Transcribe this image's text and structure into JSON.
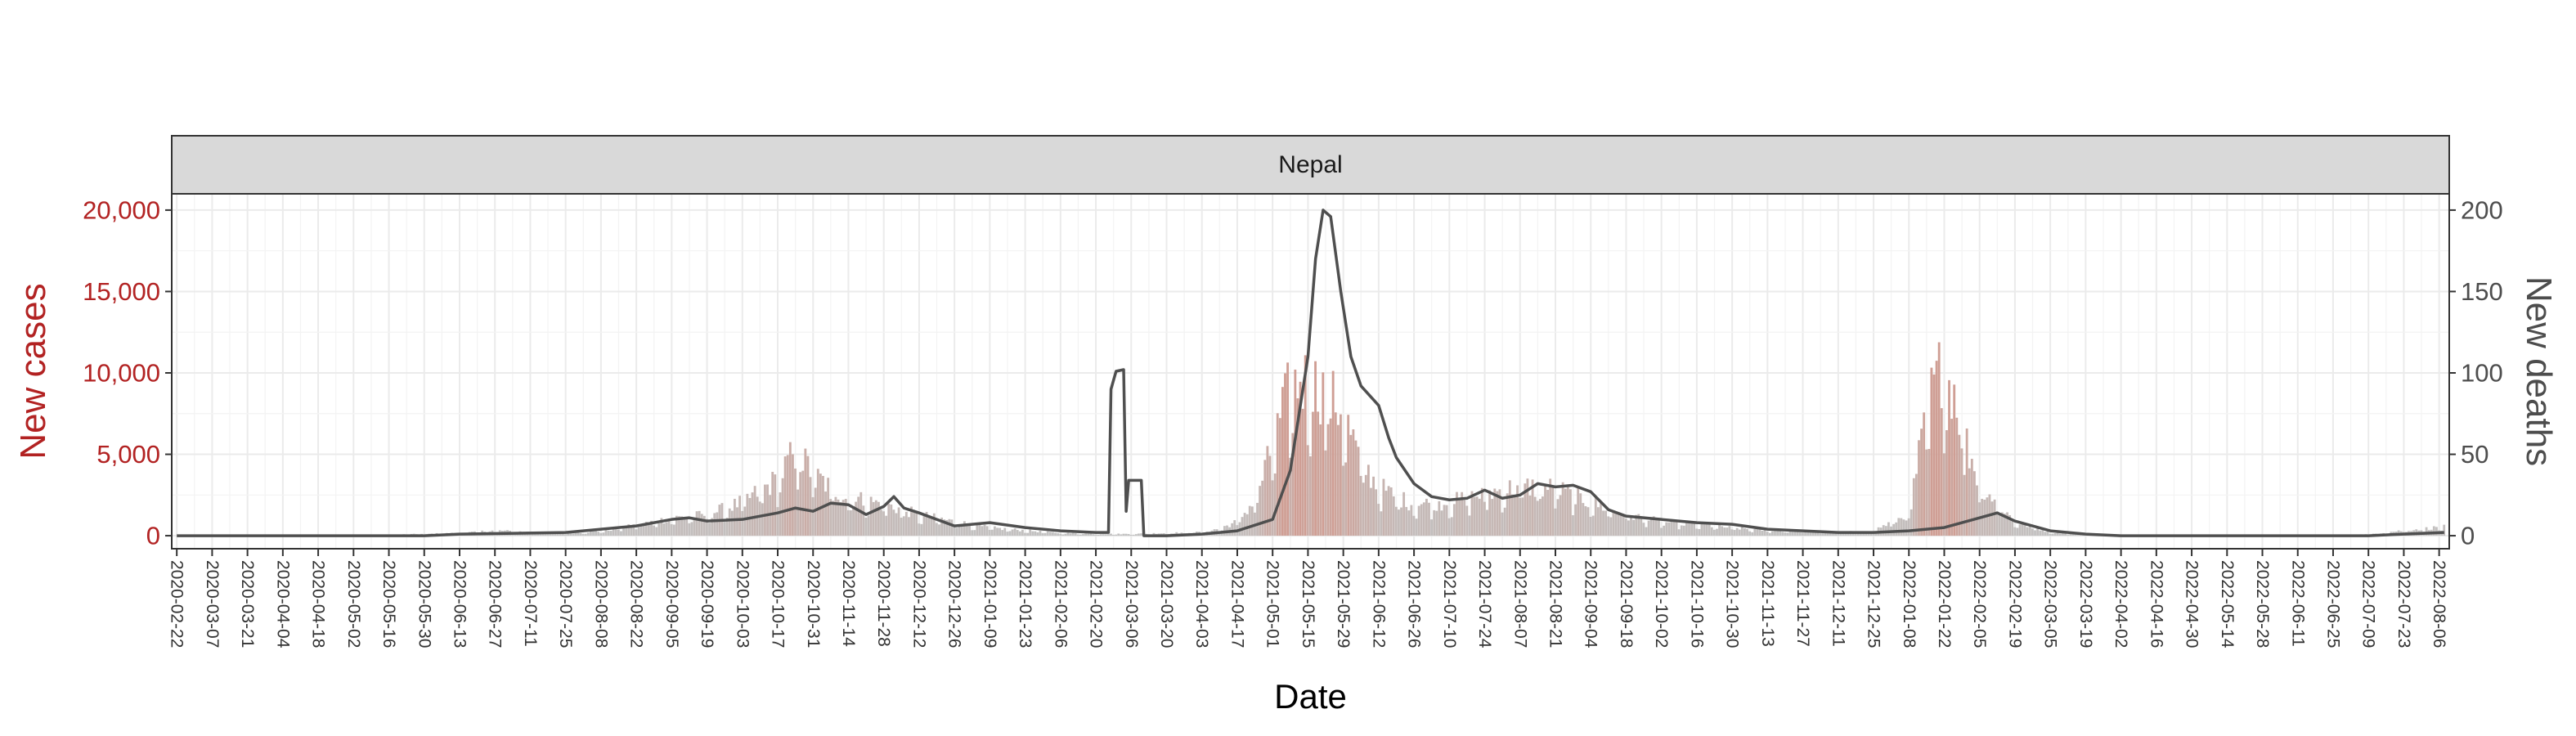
{
  "chart_data": {
    "type": "bar+line",
    "panel_label": "Nepal",
    "xlabel": "Date",
    "ylabel_left": "New cases",
    "ylabel_right": "New deaths",
    "colors": {
      "cases_axis": "#b22222",
      "deaths_axis": "#4d4d4d",
      "bars_low": "#c2c2c2",
      "bars_high": "#cf9e94",
      "deaths_line": "#4f4f4f",
      "strip_fill": "#d9d9d9",
      "grid": "#ebebeb"
    },
    "grid": true,
    "x_range": [
      "2020-02-20",
      "2022-08-10"
    ],
    "y_left_range": [
      -800,
      21000
    ],
    "y_right_range": [
      -8,
      210
    ],
    "y_left_ticks": [
      0,
      5000,
      10000,
      15000,
      20000
    ],
    "y_left_tick_labels": [
      "0",
      "5,000",
      "10,000",
      "15,000",
      "20,000"
    ],
    "y_right_ticks": [
      0,
      50,
      100,
      150,
      200
    ],
    "y_right_tick_labels": [
      "0",
      "50",
      "100",
      "150",
      "200"
    ],
    "x_tick_labels": [
      "2020-02-22",
      "2020-03-07",
      "2020-03-21",
      "2020-04-04",
      "2020-04-18",
      "2020-05-02",
      "2020-05-16",
      "2020-05-30",
      "2020-06-13",
      "2020-06-27",
      "2020-07-11",
      "2020-07-25",
      "2020-08-08",
      "2020-08-22",
      "2020-09-05",
      "2020-09-19",
      "2020-10-03",
      "2020-10-17",
      "2020-10-31",
      "2020-11-14",
      "2020-11-28",
      "2020-12-12",
      "2020-12-26",
      "2021-01-09",
      "2021-01-23",
      "2021-02-06",
      "2021-02-20",
      "2021-03-06",
      "2021-03-20",
      "2021-04-03",
      "2021-04-17",
      "2021-05-01",
      "2021-05-15",
      "2021-05-29",
      "2021-06-12",
      "2021-06-26",
      "2021-07-10",
      "2021-07-24",
      "2021-08-07",
      "2021-08-21",
      "2021-09-04",
      "2021-09-18",
      "2021-10-02",
      "2021-10-16",
      "2021-10-30",
      "2021-11-13",
      "2021-11-27",
      "2021-12-11",
      "2021-12-25",
      "2022-01-08",
      "2022-01-22",
      "2022-02-05",
      "2022-02-19",
      "2022-03-05",
      "2022-03-19",
      "2022-04-02",
      "2022-04-16",
      "2022-04-30",
      "2022-05-14",
      "2022-05-28",
      "2022-06-11",
      "2022-06-25",
      "2022-07-09",
      "2022-07-23",
      "2022-08-06"
    ],
    "new_cases_points": [
      [
        "2020-02-22",
        0
      ],
      [
        "2020-05-15",
        50
      ],
      [
        "2020-06-13",
        150
      ],
      [
        "2020-06-27",
        300
      ],
      [
        "2020-07-11",
        200
      ],
      [
        "2020-07-25",
        150
      ],
      [
        "2020-08-08",
        250
      ],
      [
        "2020-08-22",
        600
      ],
      [
        "2020-09-05",
        1000
      ],
      [
        "2020-09-19",
        1200
      ],
      [
        "2020-10-03",
        1900
      ],
      [
        "2020-10-17",
        3200
      ],
      [
        "2020-10-24",
        4800
      ],
      [
        "2020-10-31",
        3600
      ],
      [
        "2020-11-07",
        2700
      ],
      [
        "2020-11-14",
        2200
      ],
      [
        "2020-11-28",
        1800
      ],
      [
        "2020-12-12",
        1200
      ],
      [
        "2020-12-26",
        800
      ],
      [
        "2021-01-09",
        450
      ],
      [
        "2021-01-23",
        300
      ],
      [
        "2021-02-06",
        150
      ],
      [
        "2021-02-20",
        100
      ],
      [
        "2021-03-06",
        100
      ],
      [
        "2021-03-20",
        150
      ],
      [
        "2021-04-03",
        200
      ],
      [
        "2021-04-10",
        400
      ],
      [
        "2021-04-17",
        800
      ],
      [
        "2021-04-24",
        2000
      ],
      [
        "2021-05-01",
        5000
      ],
      [
        "2021-05-07",
        8000
      ],
      [
        "2021-05-12",
        8900
      ],
      [
        "2021-05-15",
        8700
      ],
      [
        "2021-05-20",
        8400
      ],
      [
        "2021-05-29",
        7000
      ],
      [
        "2021-06-05",
        4200
      ],
      [
        "2021-06-12",
        2800
      ],
      [
        "2021-06-19",
        2200
      ],
      [
        "2021-06-26",
        1800
      ],
      [
        "2021-07-10",
        1900
      ],
      [
        "2021-07-24",
        2400
      ],
      [
        "2021-08-07",
        2800
      ],
      [
        "2021-08-21",
        2700
      ],
      [
        "2021-09-04",
        1900
      ],
      [
        "2021-09-18",
        1200
      ],
      [
        "2021-10-02",
        800
      ],
      [
        "2021-10-16",
        650
      ],
      [
        "2021-10-30",
        450
      ],
      [
        "2021-11-13",
        300
      ],
      [
        "2021-11-27",
        250
      ],
      [
        "2021-12-11",
        200
      ],
      [
        "2021-12-25",
        300
      ],
      [
        "2022-01-08",
        1200
      ],
      [
        "2022-01-12",
        4500
      ],
      [
        "2022-01-17",
        8000
      ],
      [
        "2022-01-21",
        9600
      ],
      [
        "2022-01-26",
        8400
      ],
      [
        "2022-01-31",
        5200
      ],
      [
        "2022-02-05",
        3000
      ],
      [
        "2022-02-19",
        800
      ],
      [
        "2022-03-05",
        200
      ],
      [
        "2022-03-19",
        80
      ],
      [
        "2022-04-16",
        30
      ],
      [
        "2022-06-25",
        20
      ],
      [
        "2022-07-09",
        80
      ],
      [
        "2022-07-23",
        300
      ],
      [
        "2022-08-08",
        500
      ]
    ],
    "new_deaths_7day_avg": [
      [
        "2020-02-22",
        0
      ],
      [
        "2020-05-30",
        0
      ],
      [
        "2020-06-13",
        1
      ],
      [
        "2020-07-25",
        2
      ],
      [
        "2020-08-08",
        4
      ],
      [
        "2020-08-22",
        6
      ],
      [
        "2020-09-05",
        10
      ],
      [
        "2020-09-12",
        11
      ],
      [
        "2020-09-19",
        9
      ],
      [
        "2020-10-03",
        10
      ],
      [
        "2020-10-17",
        14
      ],
      [
        "2020-10-24",
        17
      ],
      [
        "2020-10-31",
        15
      ],
      [
        "2020-11-07",
        20
      ],
      [
        "2020-11-14",
        19
      ],
      [
        "2020-11-21",
        13
      ],
      [
        "2020-11-28",
        18
      ],
      [
        "2020-12-02",
        24
      ],
      [
        "2020-12-06",
        17
      ],
      [
        "2020-12-12",
        14
      ],
      [
        "2020-12-26",
        6
      ],
      [
        "2021-01-09",
        8
      ],
      [
        "2021-01-23",
        5
      ],
      [
        "2021-02-06",
        3
      ],
      [
        "2021-02-20",
        2
      ],
      [
        "2021-02-25",
        2
      ],
      [
        "2021-02-26",
        90
      ],
      [
        "2021-02-28",
        101
      ],
      [
        "2021-03-03",
        102
      ],
      [
        "2021-03-04",
        15
      ],
      [
        "2021-03-05",
        34
      ],
      [
        "2021-03-10",
        34
      ],
      [
        "2021-03-11",
        0
      ],
      [
        "2021-03-20",
        0
      ],
      [
        "2021-04-03",
        1
      ],
      [
        "2021-04-17",
        3
      ],
      [
        "2021-05-01",
        10
      ],
      [
        "2021-05-08",
        40
      ],
      [
        "2021-05-15",
        110
      ],
      [
        "2021-05-18",
        170
      ],
      [
        "2021-05-21",
        200
      ],
      [
        "2021-05-24",
        196
      ],
      [
        "2021-05-28",
        150
      ],
      [
        "2021-06-01",
        110
      ],
      [
        "2021-06-05",
        92
      ],
      [
        "2021-06-12",
        80
      ],
      [
        "2021-06-16",
        60
      ],
      [
        "2021-06-19",
        48
      ],
      [
        "2021-06-26",
        32
      ],
      [
        "2021-07-03",
        24
      ],
      [
        "2021-07-10",
        22
      ],
      [
        "2021-07-17",
        23
      ],
      [
        "2021-07-24",
        28
      ],
      [
        "2021-07-31",
        23
      ],
      [
        "2021-08-07",
        25
      ],
      [
        "2021-08-14",
        32
      ],
      [
        "2021-08-21",
        30
      ],
      [
        "2021-08-28",
        31
      ],
      [
        "2021-09-04",
        27
      ],
      [
        "2021-09-11",
        16
      ],
      [
        "2021-09-18",
        12
      ],
      [
        "2021-10-02",
        10
      ],
      [
        "2021-10-16",
        8
      ],
      [
        "2021-10-30",
        7
      ],
      [
        "2021-11-13",
        4
      ],
      [
        "2021-11-27",
        3
      ],
      [
        "2021-12-11",
        2
      ],
      [
        "2021-12-25",
        2
      ],
      [
        "2022-01-08",
        3
      ],
      [
        "2022-01-22",
        5
      ],
      [
        "2022-02-05",
        11
      ],
      [
        "2022-02-12",
        14
      ],
      [
        "2022-02-19",
        9
      ],
      [
        "2022-03-05",
        3
      ],
      [
        "2022-03-19",
        1
      ],
      [
        "2022-04-02",
        0
      ],
      [
        "2022-07-09",
        0
      ],
      [
        "2022-07-23",
        1
      ],
      [
        "2022-08-08",
        2
      ]
    ]
  }
}
